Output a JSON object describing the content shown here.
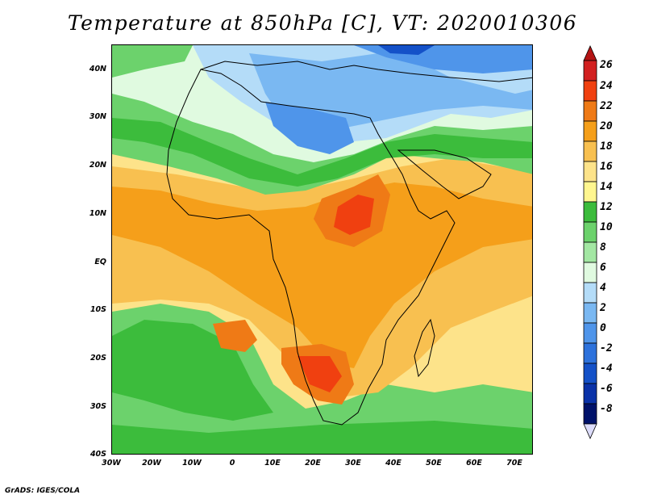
{
  "title": "Temperature at 850hPa [C], VT: 2020010306",
  "footer": "GrADS: IGES/COLA",
  "map": {
    "lat_labels": [
      "40N",
      "30N",
      "20N",
      "10N",
      "EQ",
      "10S",
      "20S",
      "30S",
      "40S"
    ],
    "lon_labels": [
      "30W",
      "20W",
      "10W",
      "0",
      "10E",
      "20E",
      "30E",
      "40E",
      "50E",
      "60E",
      "70E"
    ],
    "lat_range": [
      -40,
      45
    ],
    "lon_range": [
      -30,
      75
    ]
  },
  "colorbar": {
    "labels": [
      "26",
      "24",
      "22",
      "20",
      "18",
      "16",
      "14",
      "12",
      "10",
      "8",
      "6",
      "4",
      "2",
      "0",
      "-2",
      "-4",
      "-6",
      "-8"
    ],
    "colors": [
      "#d22020",
      "#f04010",
      "#ef7a16",
      "#f59f1a",
      "#f8c050",
      "#fde38a",
      "#fff68f",
      "#3cbc3c",
      "#6cd26c",
      "#a3e7a3",
      "#e0fae0",
      "#b4dcf8",
      "#7ab8f2",
      "#4f95ea",
      "#2d72dc",
      "#1451c8",
      "#0a32a8",
      "#00126a"
    ],
    "top_arrow_color": "#b41414",
    "bottom_arrow_color": "#dcdcfa"
  }
}
